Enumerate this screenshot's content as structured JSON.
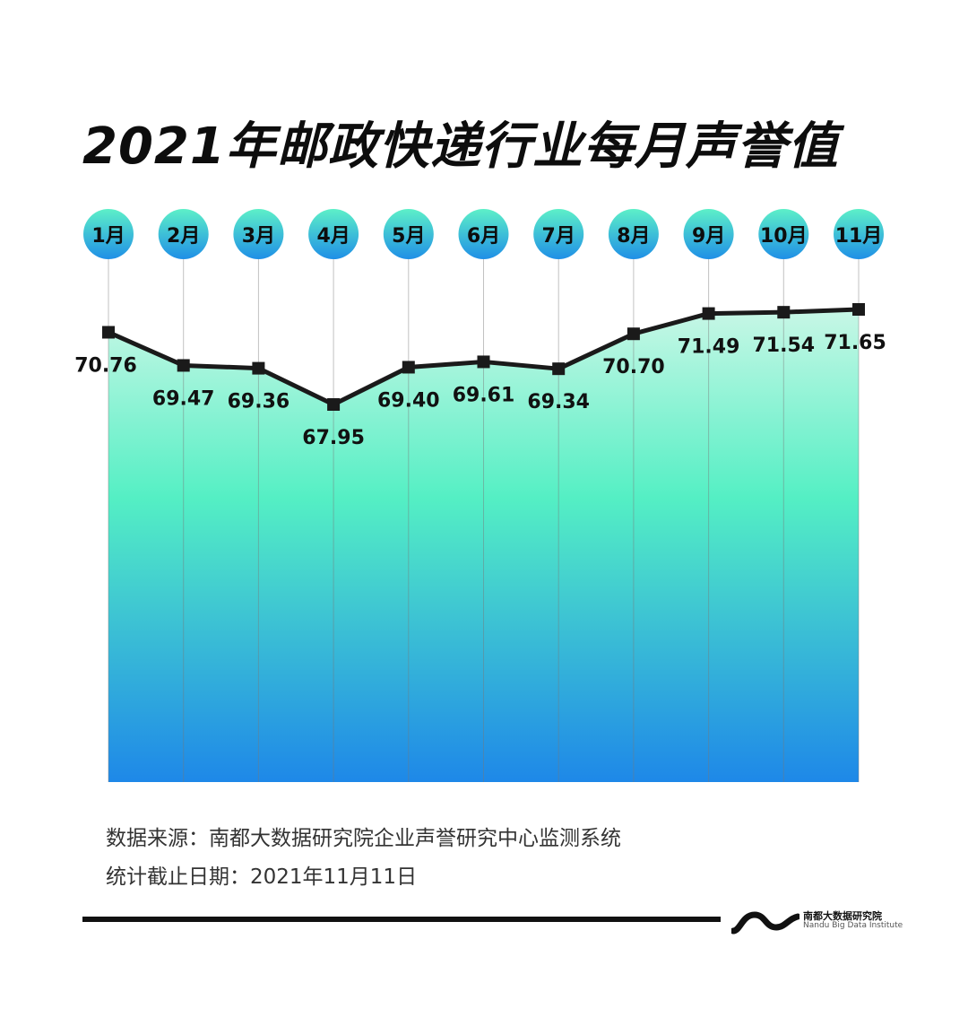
{
  "title": "2021年邮政快递行业每月声誉值",
  "chart_data": {
    "type": "area",
    "categories": [
      "1月",
      "2月",
      "3月",
      "4月",
      "5月",
      "6月",
      "7月",
      "8月",
      "9月",
      "10月",
      "11月"
    ],
    "values": [
      70.76,
      69.47,
      69.36,
      67.95,
      69.4,
      69.61,
      69.34,
      70.7,
      71.49,
      71.54,
      71.65
    ],
    "data_labels": [
      "70.76",
      "69.47",
      "69.36",
      "67.95",
      "69.40",
      "69.61",
      "69.34",
      "70.70",
      "71.49",
      "71.54",
      "71.65"
    ],
    "title": "2021年邮政快递行业每月声誉值",
    "xlabel": "",
    "ylabel": "",
    "grid": false,
    "colors": {
      "line": "#1a1a1a",
      "marker": "#1a1a1a",
      "area_top": "#c8f7e6",
      "area_mid": "#54efc4",
      "area_bottom": "#1e88e8",
      "badge_top": "#5df0c8",
      "badge_bottom": "#1f8fe6"
    }
  },
  "footer": {
    "source": "数据来源：南都大数据研究院企业声誉研究中心监测系统",
    "date": "统计截止日期：2021年11月11日"
  },
  "logo": {
    "cn": "南都大数据研究院",
    "en": "Nandu Big Data Institute"
  }
}
